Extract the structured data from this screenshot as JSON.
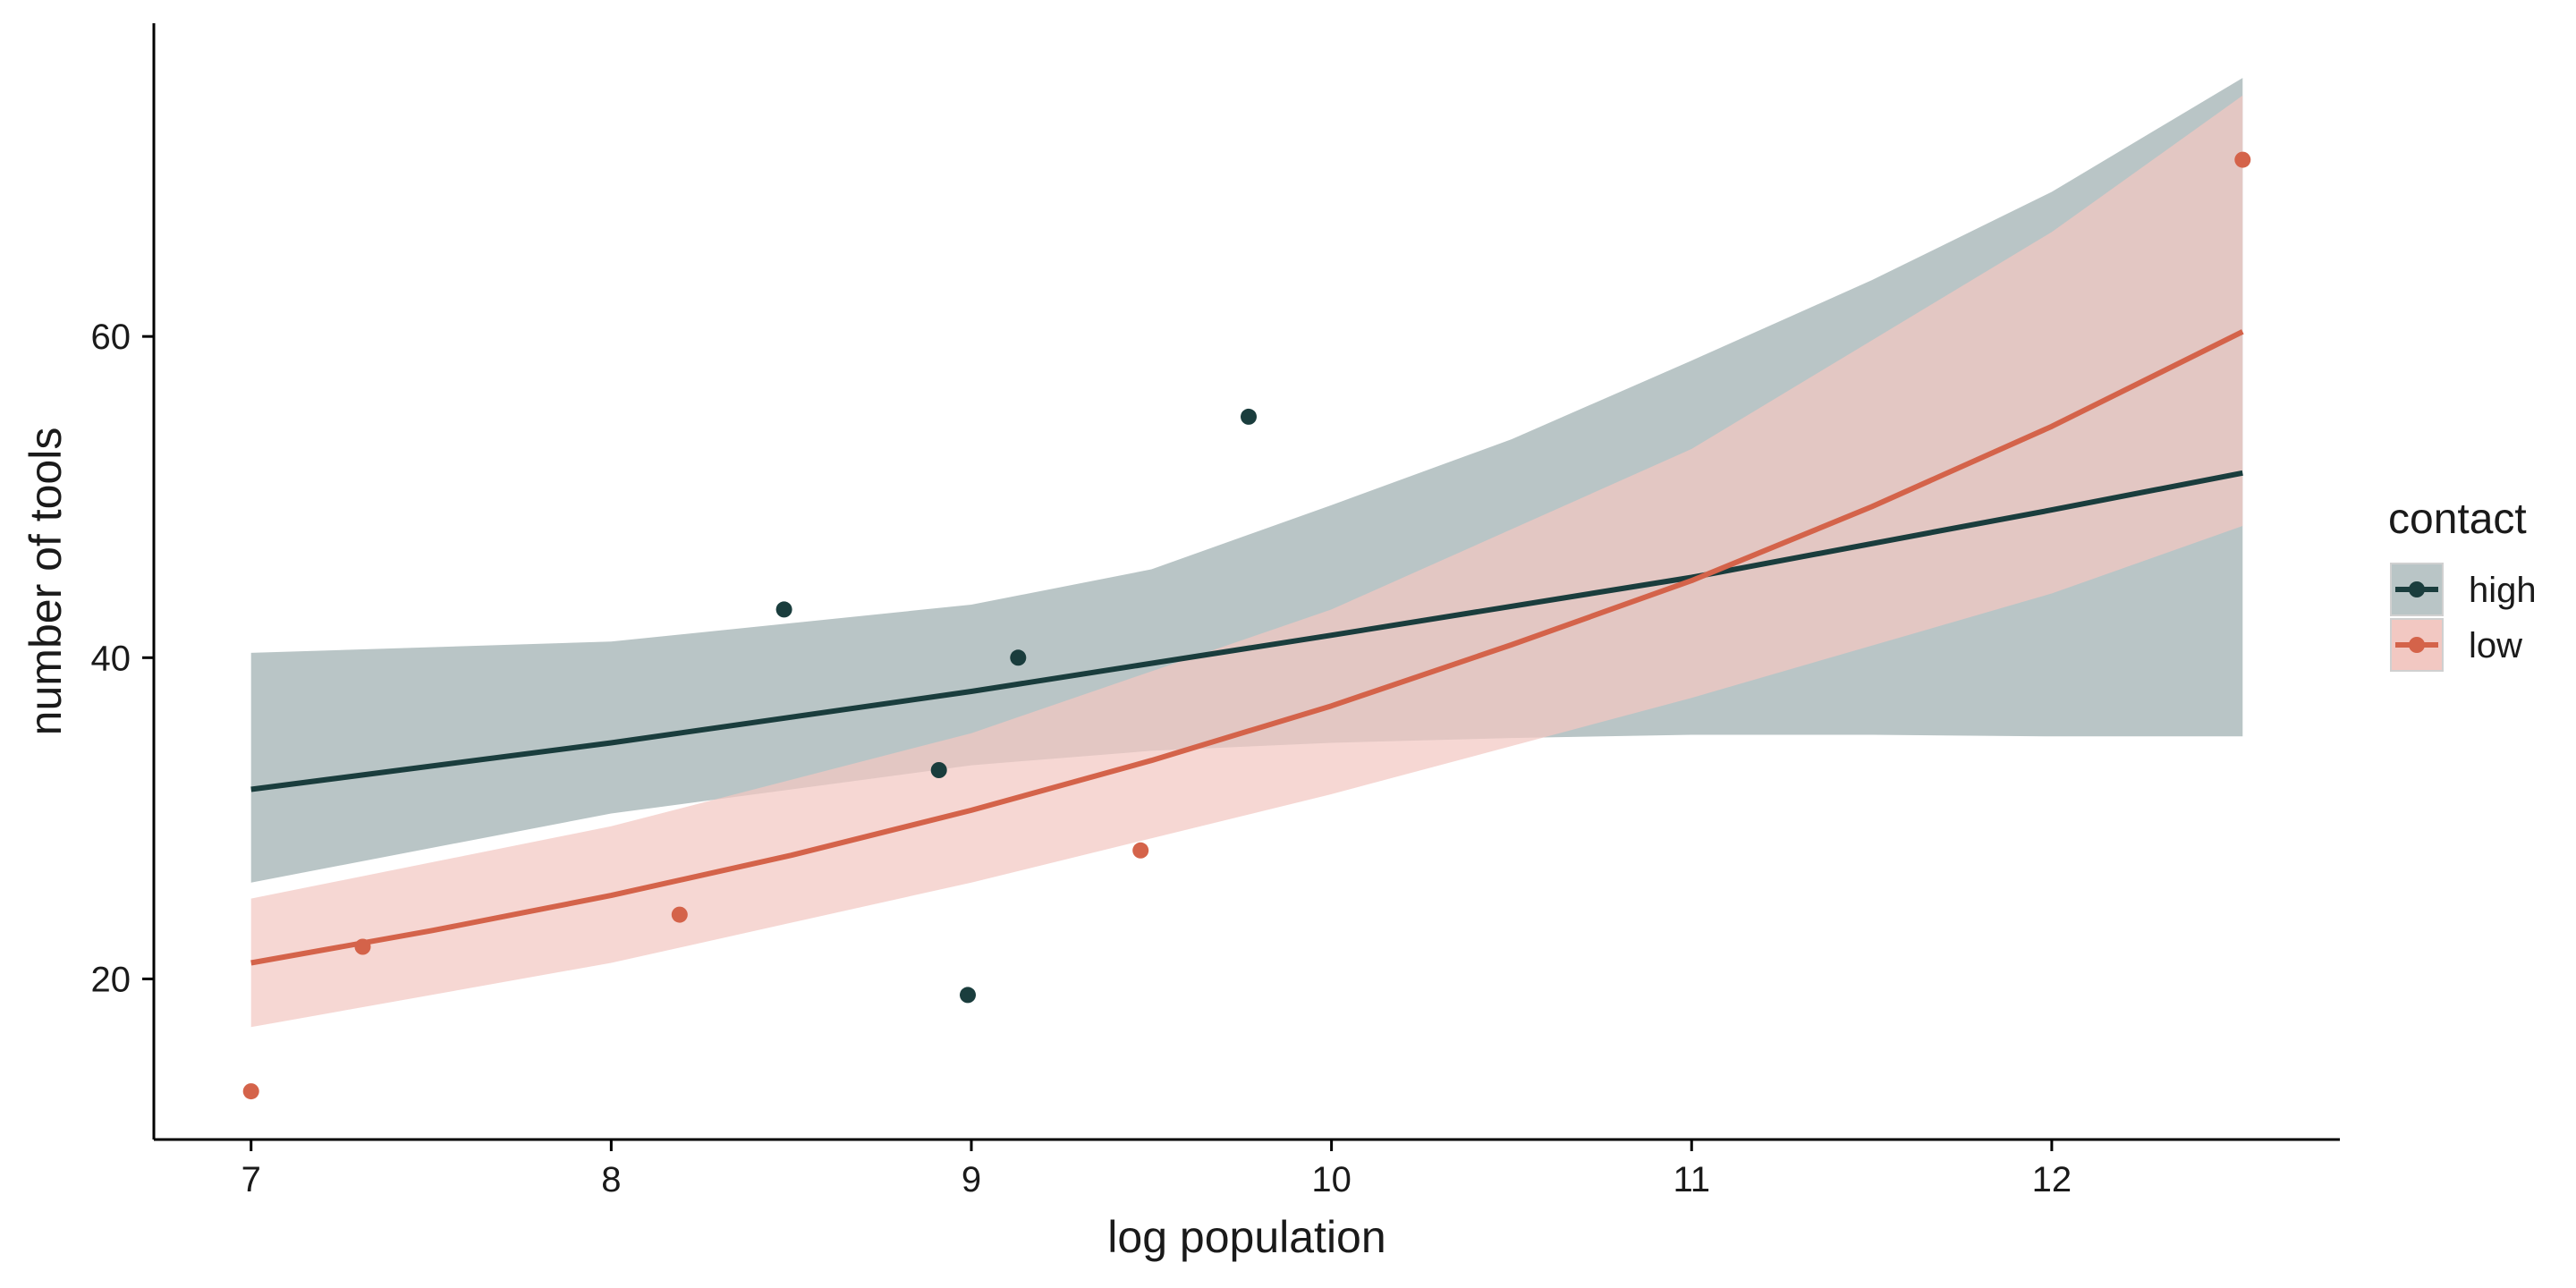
{
  "chart_data": {
    "type": "line",
    "title": "",
    "xlabel": "log population",
    "ylabel": "number of tools",
    "xlim": [
      6.73,
      12.8
    ],
    "ylim": [
      10,
      79.5
    ],
    "x_ticks": [
      "7",
      "8",
      "9",
      "10",
      "11",
      "12"
    ],
    "y_ticks": [
      "20",
      "40",
      "60"
    ],
    "grid": false,
    "legend": {
      "title": "contact",
      "placement": "right"
    },
    "series": [
      {
        "name": "high",
        "color": "#1a3d3d",
        "band_color": "#b9c5c6",
        "points": [
          {
            "x": 8.48,
            "y": 43
          },
          {
            "x": 8.91,
            "y": 33
          },
          {
            "x": 8.99,
            "y": 19
          },
          {
            "x": 9.13,
            "y": 40
          },
          {
            "x": 9.77,
            "y": 55
          }
        ],
        "fit": {
          "x": [
            7.0,
            8.0,
            9.0,
            10.0,
            11.0,
            12.0,
            12.53
          ],
          "y": [
            31.8,
            34.7,
            37.9,
            41.4,
            45.0,
            49.2,
            51.5
          ]
        },
        "band": {
          "x": [
            7.0,
            8.0,
            9.0,
            9.5,
            10.0,
            10.5,
            11.0,
            11.5,
            12.0,
            12.53
          ],
          "lower": [
            26.0,
            30.3,
            33.3,
            34.2,
            34.7,
            35.0,
            35.2,
            35.2,
            35.1,
            35.1
          ],
          "upper": [
            40.3,
            41.0,
            43.3,
            45.5,
            49.5,
            53.6,
            58.5,
            63.5,
            69.0,
            76.1
          ]
        }
      },
      {
        "name": "low",
        "color": "#d4634a",
        "band_color": "#f2c8c2",
        "points": [
          {
            "x": 7.0,
            "y": 13
          },
          {
            "x": 7.31,
            "y": 22
          },
          {
            "x": 8.19,
            "y": 24
          },
          {
            "x": 9.47,
            "y": 28
          },
          {
            "x": 12.53,
            "y": 71
          }
        ],
        "fit": {
          "x": [
            7.0,
            7.5,
            8.0,
            8.5,
            9.0,
            9.5,
            10.0,
            10.5,
            11.0,
            11.5,
            12.0,
            12.53
          ],
          "y": [
            21.0,
            23.0,
            25.2,
            27.7,
            30.5,
            33.6,
            37.0,
            40.8,
            44.8,
            49.4,
            54.4,
            60.3
          ]
        },
        "band": {
          "x": [
            7.0,
            8.0,
            9.0,
            10.0,
            11.0,
            12.0,
            12.53
          ],
          "lower": [
            17.0,
            21.0,
            26.0,
            31.5,
            37.5,
            44.0,
            48.2
          ],
          "upper": [
            25.0,
            29.5,
            35.3,
            43.0,
            53.0,
            66.5,
            75.0
          ]
        }
      }
    ]
  }
}
